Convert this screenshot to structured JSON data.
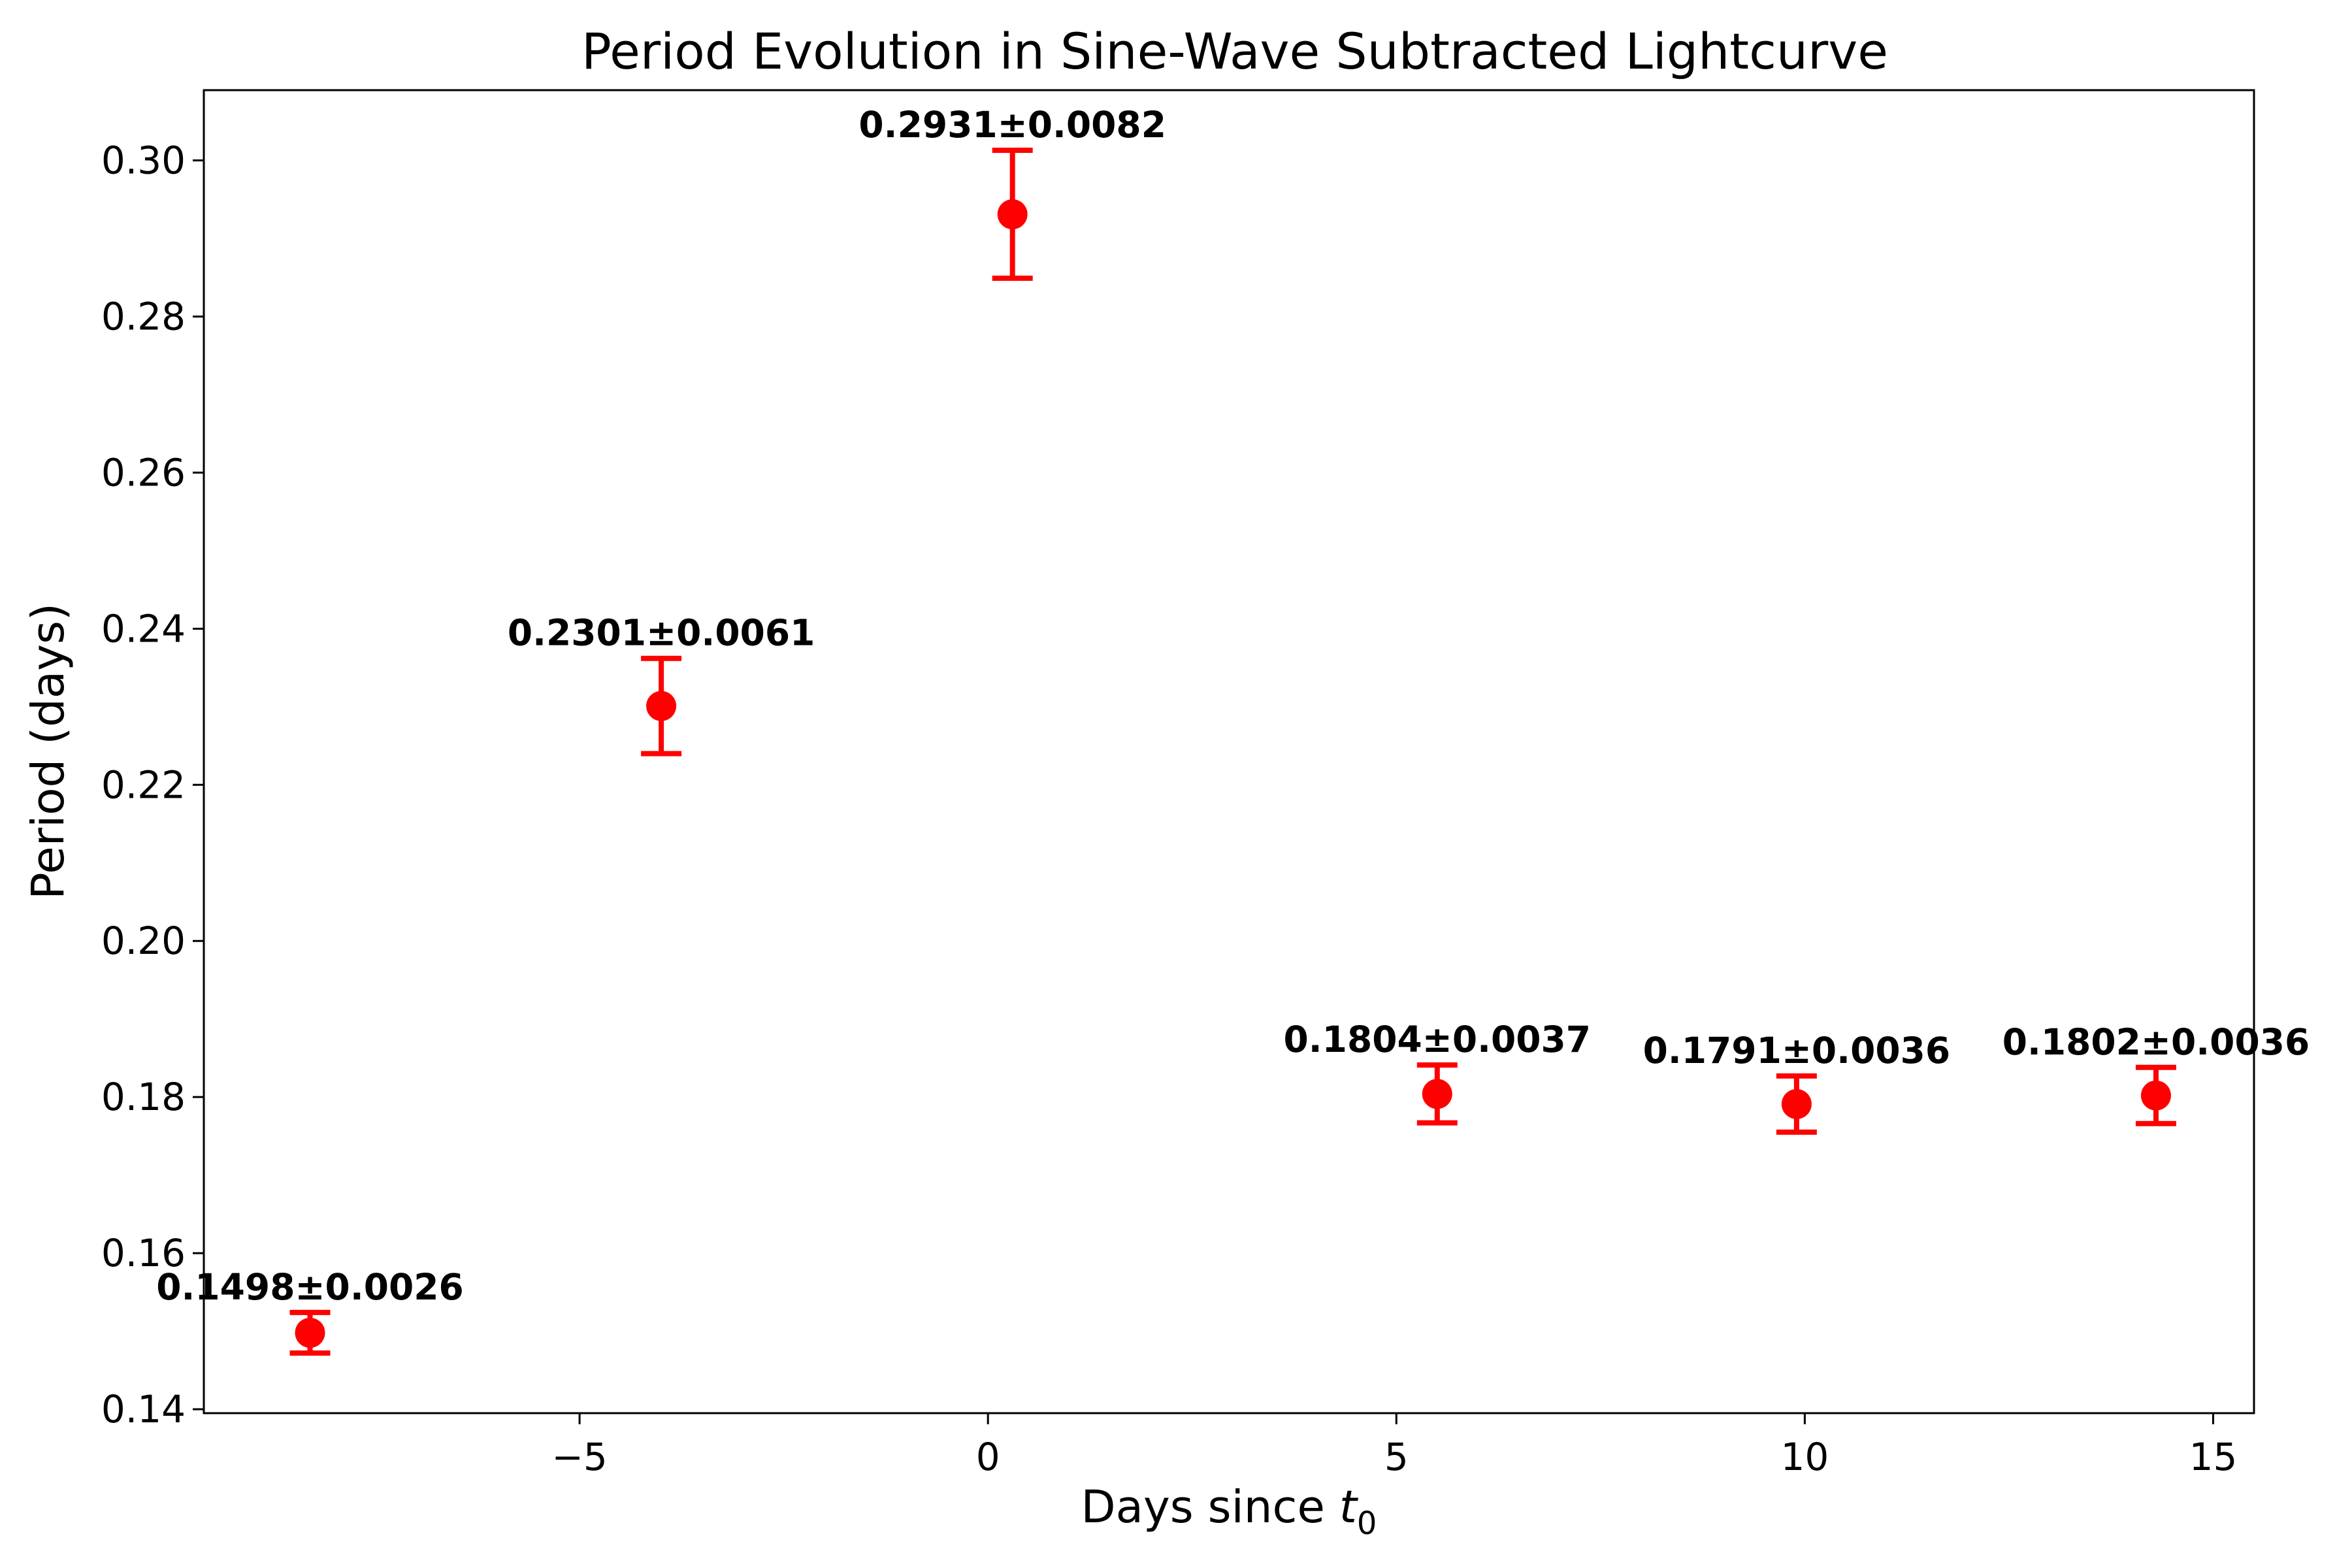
{
  "chart_data": {
    "type": "scatter",
    "title": "Period Evolution in Sine-Wave Subtracted Lightcurve",
    "xlabel_main": "Days since ",
    "xlabel_symbol": "t",
    "xlabel_subscript": "0",
    "ylabel": "Period (days)",
    "xlim": [
      -9.6,
      15.5
    ],
    "ylim": [
      0.1395,
      0.309
    ],
    "x_ticks": [
      -5,
      0,
      5,
      10,
      15
    ],
    "x_tick_labels": [
      "−5",
      "0",
      "5",
      "10",
      "15"
    ],
    "y_ticks": [
      0.14,
      0.16,
      0.18,
      0.2,
      0.22,
      0.24,
      0.26,
      0.28,
      0.3
    ],
    "y_tick_labels": [
      "0.14",
      "0.16",
      "0.18",
      "0.20",
      "0.22",
      "0.24",
      "0.26",
      "0.28",
      "0.30"
    ],
    "grid": false,
    "marker_color": "#ff0000",
    "points": [
      {
        "x": -8.3,
        "y": 0.1498,
        "err": 0.0026,
        "label": "0.1498±0.0026"
      },
      {
        "x": -4.0,
        "y": 0.2301,
        "err": 0.0061,
        "label": "0.2301±0.0061"
      },
      {
        "x": 0.3,
        "y": 0.2931,
        "err": 0.0082,
        "label": "0.2931±0.0082"
      },
      {
        "x": 5.5,
        "y": 0.1804,
        "err": 0.0037,
        "label": "0.1804±0.0037"
      },
      {
        "x": 9.9,
        "y": 0.1791,
        "err": 0.0036,
        "label": "0.1791±0.0036"
      },
      {
        "x": 14.3,
        "y": 0.1802,
        "err": 0.0036,
        "label": "0.1802±0.0036"
      }
    ]
  }
}
